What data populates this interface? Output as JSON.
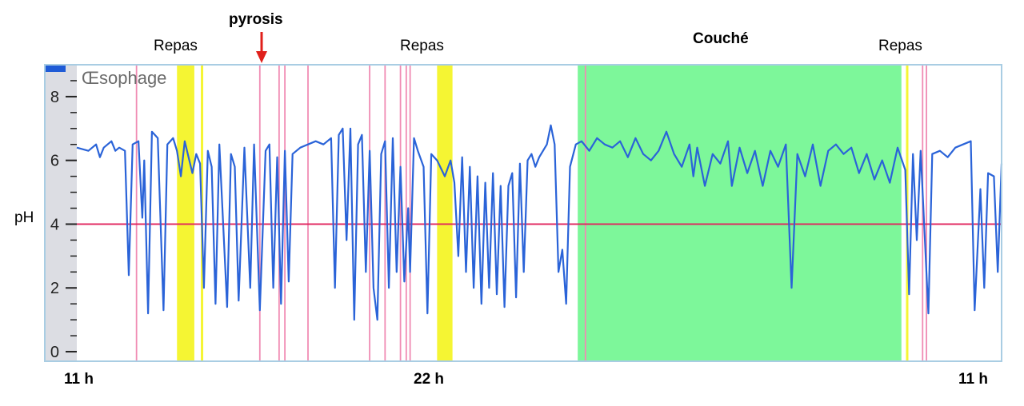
{
  "chart_data": {
    "type": "line",
    "title": "",
    "inner_label": "Œsophage",
    "ylabel": "pH",
    "ylim": [
      -0.3,
      9.0
    ],
    "yticks": [
      "0",
      "2",
      "4",
      "6",
      "8"
    ],
    "xlim": [
      0,
      24
    ],
    "xtick_labels": [
      "11 h",
      "22 h",
      "11 h"
    ],
    "threshold": 4,
    "annotations": {
      "pyrosis": "pyrosis",
      "meal1": "Repas",
      "meal2": "Repas",
      "meal3": "Repas",
      "lying": "Couché"
    },
    "colors": {
      "trace": "#2a63d8",
      "threshold": "#e0245e",
      "event_line": "#f08cb4",
      "meal": "#f5f533",
      "supine": "#7df79a",
      "frame": "#a9cde3",
      "arrow": "#e0201b"
    },
    "meal_periods": [
      [
        2.6,
        3.05
      ],
      [
        9.35,
        9.75
      ]
    ],
    "meal_markers": [
      3.25,
      21.55
    ],
    "supine_period": [
      13.0,
      21.4
    ],
    "event_markers": [
      1.55,
      4.75,
      5.25,
      5.4,
      6.0,
      7.6,
      8.0,
      8.4,
      8.55,
      8.65,
      13.2,
      21.95,
      22.05
    ],
    "series": [
      {
        "values": [
          [
            0.0,
            6.4
          ],
          [
            0.3,
            6.3
          ],
          [
            0.5,
            6.5
          ],
          [
            0.6,
            6.1
          ],
          [
            0.7,
            6.4
          ],
          [
            0.9,
            6.6
          ],
          [
            1.0,
            6.3
          ],
          [
            1.1,
            6.4
          ],
          [
            1.25,
            6.3
          ],
          [
            1.35,
            2.4
          ],
          [
            1.45,
            6.5
          ],
          [
            1.6,
            6.6
          ],
          [
            1.7,
            4.2
          ],
          [
            1.75,
            6.0
          ],
          [
            1.85,
            1.2
          ],
          [
            1.95,
            6.9
          ],
          [
            2.1,
            6.7
          ],
          [
            2.25,
            1.3
          ],
          [
            2.35,
            6.5
          ],
          [
            2.5,
            6.7
          ],
          [
            2.6,
            6.3
          ],
          [
            2.7,
            5.5
          ],
          [
            2.8,
            6.6
          ],
          [
            3.0,
            5.6
          ],
          [
            3.1,
            6.2
          ],
          [
            3.2,
            5.9
          ],
          [
            3.3,
            2.0
          ],
          [
            3.4,
            6.3
          ],
          [
            3.5,
            5.8
          ],
          [
            3.6,
            1.5
          ],
          [
            3.7,
            6.5
          ],
          [
            3.9,
            1.4
          ],
          [
            4.0,
            6.2
          ],
          [
            4.1,
            5.8
          ],
          [
            4.2,
            1.6
          ],
          [
            4.35,
            6.4
          ],
          [
            4.5,
            2.0
          ],
          [
            4.6,
            6.5
          ],
          [
            4.75,
            1.3
          ],
          [
            4.9,
            6.3
          ],
          [
            5.0,
            6.5
          ],
          [
            5.1,
            2.0
          ],
          [
            5.2,
            6.1
          ],
          [
            5.3,
            1.5
          ],
          [
            5.4,
            6.3
          ],
          [
            5.5,
            2.2
          ],
          [
            5.6,
            6.2
          ],
          [
            5.8,
            6.4
          ],
          [
            6.0,
            6.5
          ],
          [
            6.2,
            6.6
          ],
          [
            6.4,
            6.5
          ],
          [
            6.6,
            6.7
          ],
          [
            6.7,
            2.0
          ],
          [
            6.8,
            6.8
          ],
          [
            6.9,
            7.0
          ],
          [
            7.0,
            3.5
          ],
          [
            7.1,
            7.0
          ],
          [
            7.2,
            1.0
          ],
          [
            7.3,
            6.5
          ],
          [
            7.4,
            6.8
          ],
          [
            7.5,
            2.5
          ],
          [
            7.6,
            6.3
          ],
          [
            7.7,
            2.0
          ],
          [
            7.8,
            1.0
          ],
          [
            7.9,
            6.2
          ],
          [
            8.0,
            6.6
          ],
          [
            8.1,
            2.0
          ],
          [
            8.2,
            6.7
          ],
          [
            8.3,
            2.5
          ],
          [
            8.4,
            5.8
          ],
          [
            8.5,
            2.2
          ],
          [
            8.6,
            4.5
          ],
          [
            8.65,
            2.5
          ],
          [
            8.75,
            6.7
          ],
          [
            8.85,
            6.3
          ],
          [
            9.0,
            5.8
          ],
          [
            9.1,
            1.2
          ],
          [
            9.2,
            6.2
          ],
          [
            9.35,
            6.0
          ],
          [
            9.55,
            5.5
          ],
          [
            9.7,
            6.0
          ],
          [
            9.8,
            5.3
          ],
          [
            9.9,
            3.0
          ],
          [
            10.0,
            6.1
          ],
          [
            10.1,
            2.5
          ],
          [
            10.2,
            5.8
          ],
          [
            10.3,
            2.0
          ],
          [
            10.4,
            5.5
          ],
          [
            10.5,
            1.5
          ],
          [
            10.6,
            5.3
          ],
          [
            10.7,
            2.0
          ],
          [
            10.8,
            5.6
          ],
          [
            10.9,
            1.8
          ],
          [
            11.0,
            5.2
          ],
          [
            11.1,
            1.4
          ],
          [
            11.2,
            5.2
          ],
          [
            11.3,
            5.6
          ],
          [
            11.4,
            1.7
          ],
          [
            11.5,
            5.9
          ],
          [
            11.6,
            2.5
          ],
          [
            11.7,
            6.0
          ],
          [
            11.8,
            6.2
          ],
          [
            11.9,
            5.8
          ],
          [
            12.0,
            6.1
          ],
          [
            12.1,
            6.3
          ],
          [
            12.2,
            6.5
          ],
          [
            12.3,
            7.1
          ],
          [
            12.4,
            6.5
          ],
          [
            12.5,
            2.5
          ],
          [
            12.6,
            3.2
          ],
          [
            12.7,
            1.5
          ],
          [
            12.8,
            5.8
          ],
          [
            12.95,
            6.5
          ],
          [
            13.1,
            6.6
          ],
          [
            13.3,
            6.3
          ],
          [
            13.5,
            6.7
          ],
          [
            13.7,
            6.5
          ],
          [
            13.9,
            6.4
          ],
          [
            14.1,
            6.6
          ],
          [
            14.3,
            6.1
          ],
          [
            14.5,
            6.7
          ],
          [
            14.7,
            6.2
          ],
          [
            14.9,
            6.0
          ],
          [
            15.1,
            6.3
          ],
          [
            15.3,
            6.9
          ],
          [
            15.5,
            6.2
          ],
          [
            15.7,
            5.8
          ],
          [
            15.9,
            6.5
          ],
          [
            16.0,
            5.5
          ],
          [
            16.1,
            6.4
          ],
          [
            16.3,
            5.2
          ],
          [
            16.5,
            6.2
          ],
          [
            16.7,
            5.9
          ],
          [
            16.9,
            6.6
          ],
          [
            17.0,
            5.2
          ],
          [
            17.2,
            6.4
          ],
          [
            17.4,
            5.6
          ],
          [
            17.6,
            6.3
          ],
          [
            17.8,
            5.2
          ],
          [
            18.0,
            6.3
          ],
          [
            18.2,
            5.8
          ],
          [
            18.4,
            6.5
          ],
          [
            18.55,
            2.0
          ],
          [
            18.7,
            6.2
          ],
          [
            18.9,
            5.5
          ],
          [
            19.1,
            6.5
          ],
          [
            19.3,
            5.2
          ],
          [
            19.5,
            6.3
          ],
          [
            19.7,
            6.5
          ],
          [
            19.9,
            6.2
          ],
          [
            20.1,
            6.4
          ],
          [
            20.3,
            5.6
          ],
          [
            20.5,
            6.2
          ],
          [
            20.7,
            5.4
          ],
          [
            20.9,
            6.0
          ],
          [
            21.1,
            5.3
          ],
          [
            21.3,
            6.4
          ],
          [
            21.5,
            5.7
          ],
          [
            21.6,
            1.8
          ],
          [
            21.7,
            6.2
          ],
          [
            21.8,
            3.5
          ],
          [
            21.9,
            6.3
          ],
          [
            22.1,
            1.2
          ],
          [
            22.2,
            6.2
          ],
          [
            22.4,
            6.3
          ],
          [
            22.6,
            6.1
          ],
          [
            22.8,
            6.4
          ],
          [
            23.0,
            6.5
          ],
          [
            23.2,
            6.6
          ],
          [
            23.3,
            1.3
          ],
          [
            23.45,
            5.1
          ],
          [
            23.55,
            2.0
          ],
          [
            23.65,
            5.6
          ],
          [
            23.8,
            5.5
          ],
          [
            23.9,
            2.5
          ],
          [
            24.0,
            5.9
          ]
        ]
      }
    ]
  }
}
